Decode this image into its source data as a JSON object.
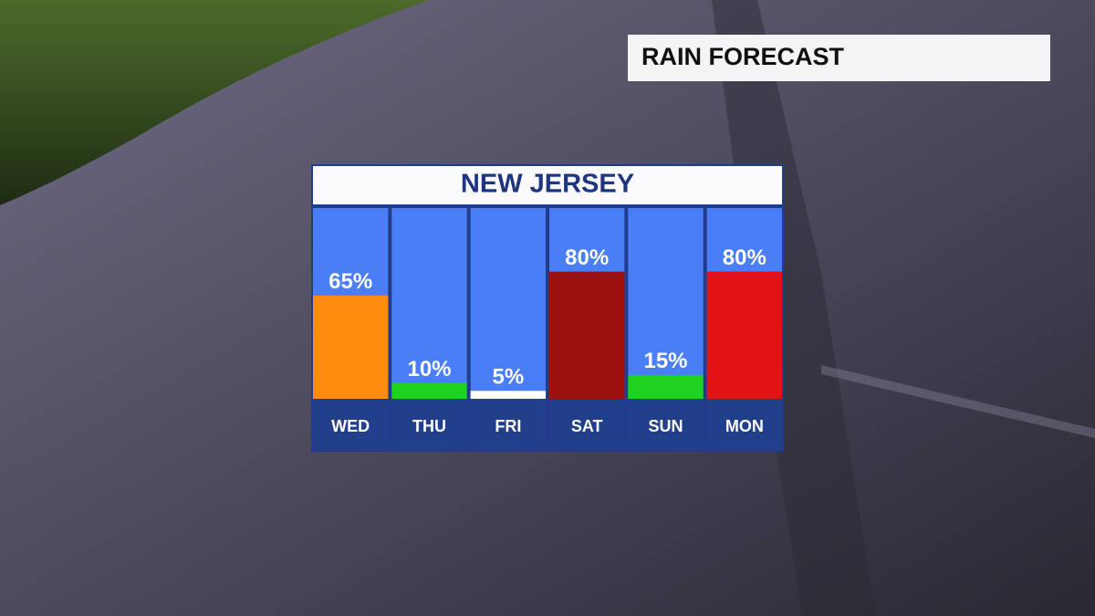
{
  "header": {
    "title": "RAIN FORECAST"
  },
  "chart_data": {
    "type": "bar",
    "title": "NEW JERSEY",
    "categories": [
      "WED",
      "THU",
      "FRI",
      "SAT",
      "SUN",
      "MON"
    ],
    "values": [
      65,
      10,
      5,
      80,
      15,
      80
    ],
    "value_labels": [
      "65%",
      "10%",
      "5%",
      "80%",
      "15%",
      "80%"
    ],
    "colors": [
      "#ff8c0f",
      "#1fd21f",
      "#ffffff",
      "#9c1010",
      "#1fd21f",
      "#e01414"
    ],
    "ylim": [
      0,
      120
    ]
  }
}
